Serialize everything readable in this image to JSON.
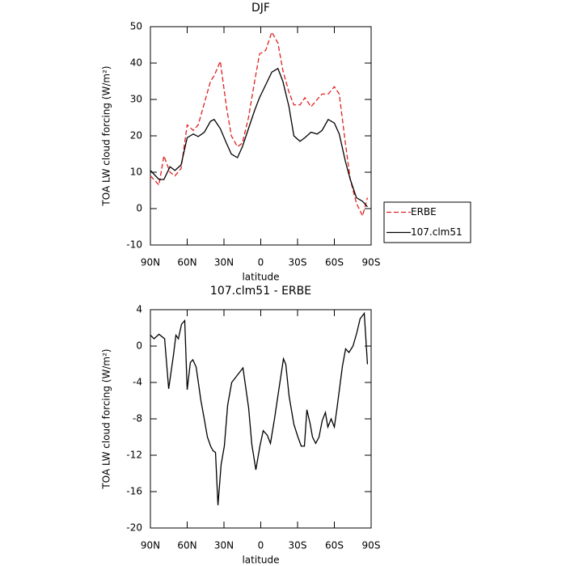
{
  "chart_data": [
    {
      "type": "line",
      "title": "DJF",
      "xlabel": "latitude",
      "ylabel": "TOA LW cloud forcing (W/m²)",
      "xlim": [
        90,
        -90
      ],
      "xticks": [
        {
          "value": 90,
          "label": "90N"
        },
        {
          "value": 60,
          "label": "60N"
        },
        {
          "value": 30,
          "label": "30N"
        },
        0,
        {
          "value": -30,
          "label": "30S"
        },
        {
          "value": -60,
          "label": "60S"
        },
        {
          "value": -90,
          "label": "90S"
        }
      ],
      "ylim": [
        -10,
        50
      ],
      "yticks": [
        -10,
        0,
        10,
        20,
        30,
        40,
        50
      ],
      "legend": "right",
      "x": [
        90,
        83,
        79,
        74,
        70,
        65,
        60,
        55,
        51,
        46,
        41,
        38,
        33,
        28,
        24,
        19,
        15,
        10,
        5,
        1,
        -4,
        -9,
        -14,
        -18,
        -23,
        -27,
        -32,
        -36,
        -41,
        -46,
        -50,
        -55,
        -60,
        -64,
        -69,
        -73,
        -78,
        -83,
        -87
      ],
      "series": [
        {
          "name": "ERBE",
          "color": "#e02020",
          "dash": true,
          "values": [
            9,
            6.5,
            14.5,
            10,
            9,
            11,
            23,
            21.5,
            23,
            29,
            35,
            36.5,
            40.5,
            28,
            20,
            17,
            18,
            25,
            35,
            42.5,
            43.5,
            48.5,
            45.5,
            38,
            32,
            28.5,
            28.5,
            30.5,
            28,
            30,
            31.5,
            31.5,
            33.5,
            31.5,
            18,
            8,
            1.5,
            -2,
            3
          ]
        },
        {
          "name": "107.clm51",
          "color": "#000000",
          "dash": false,
          "values": [
            10.5,
            8,
            8,
            11.5,
            10.5,
            12,
            19.5,
            20.5,
            19.8,
            21,
            24,
            24.5,
            22,
            18,
            15,
            14,
            17,
            22,
            27,
            30.5,
            34,
            37.5,
            38.5,
            35,
            28,
            20,
            18.5,
            19.5,
            21,
            20.5,
            21.5,
            24.5,
            23.5,
            20.5,
            13,
            8,
            3,
            2,
            0.5
          ]
        }
      ]
    },
    {
      "type": "line",
      "title": "107.clm51 - ERBE",
      "xlabel": "latitude",
      "ylabel": "TOA LW cloud forcing (W/m²)",
      "xlim": [
        90,
        -90
      ],
      "xticks": [
        {
          "value": 90,
          "label": "90N"
        },
        {
          "value": 60,
          "label": "60N"
        },
        {
          "value": 30,
          "label": "30N"
        },
        0,
        {
          "value": -30,
          "label": "30S"
        },
        {
          "value": -60,
          "label": "60S"
        },
        {
          "value": -90,
          "label": "90S"
        }
      ],
      "ylim": [
        -20,
        4
      ],
      "yticks": [
        -20,
        -16,
        -12,
        -8,
        -4,
        0,
        4
      ],
      "x": [
        90,
        87,
        83,
        78.4,
        75.1,
        71.2,
        69.2,
        67.2,
        64.6,
        62,
        60,
        57.4,
        55.4,
        52.7,
        48.8,
        46.1,
        43.5,
        40.9,
        38.9,
        36.9,
        34.9,
        32.3,
        29.7,
        27,
        23.7,
        19.1,
        14.5,
        9.9,
        7.3,
        4,
        0.7,
        -2,
        -5.3,
        -7.9,
        -11.2,
        -14.5,
        -18.5,
        -20.4,
        -23.1,
        -27,
        -30.3,
        -33,
        -35.6,
        -37.6,
        -40.2,
        -42.2,
        -44.8,
        -47.5,
        -50.1,
        -52.7,
        -54.7,
        -57.4,
        -60,
        -62,
        -66.6,
        -69.2,
        -71.9,
        -75.2,
        -78.4,
        -81,
        -84.4,
        -87
      ],
      "series": [
        {
          "color": "#000000",
          "dash": false,
          "values": [
            1.2,
            0.8,
            1.3,
            0.8,
            -4.7,
            -1,
            1.2,
            0.8,
            2.4,
            2.8,
            -4.8,
            -1.8,
            -1.5,
            -2.3,
            -6,
            -8,
            -10,
            -11,
            -11.5,
            -11.7,
            -17.5,
            -13,
            -11,
            -6.5,
            -4,
            -3.2,
            -2.4,
            -6.8,
            -10.8,
            -13.6,
            -11,
            -9.3,
            -9.8,
            -10.7,
            -8,
            -5,
            -1.4,
            -2,
            -5.5,
            -8.6,
            -10,
            -11,
            -11,
            -7,
            -8.5,
            -10,
            -10.7,
            -10,
            -8.2,
            -7.3,
            -8.9,
            -8,
            -8.9,
            -7,
            -2.2,
            -0.3,
            -0.7,
            0,
            1.5,
            3,
            3.6,
            -2
          ]
        }
      ]
    }
  ]
}
